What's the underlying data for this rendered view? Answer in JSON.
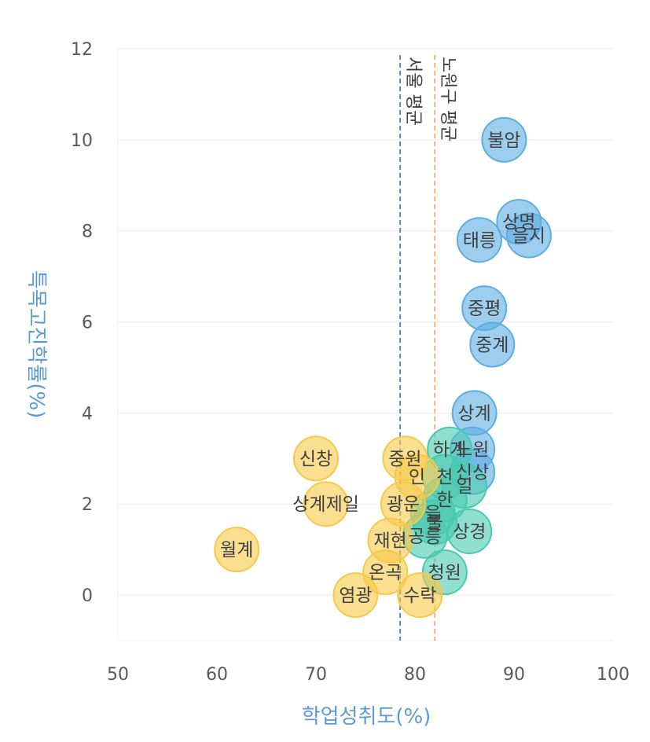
{
  "chart_data": {
    "type": "scatter",
    "xlabel": "학업성취도(%)",
    "ylabel": "특목고진학률(%)",
    "xlim": [
      50,
      100
    ],
    "ylim": [
      -1,
      12
    ],
    "x_ticks": [
      "50",
      "60",
      "70",
      "80",
      "90",
      "100"
    ],
    "y_ticks": [
      "0",
      "2",
      "4",
      "6",
      "8",
      "10",
      "12"
    ],
    "grid": "horizontal",
    "reference_lines": [
      {
        "label": "서울 평균",
        "x": 78.5,
        "color": "#5A8CA8"
      },
      {
        "label": "노원구 평균",
        "x": 82.0,
        "color": "#F4B183"
      }
    ],
    "groups": [
      {
        "color": "#5DADE2",
        "points": [
          {
            "label": "불암",
            "x": 89.0,
            "y": 10.0
          },
          {
            "label": "상명",
            "x": 90.5,
            "y": 8.2
          },
          {
            "label": "을지",
            "x": 91.5,
            "y": 7.9
          },
          {
            "label": "태릉",
            "x": 86.5,
            "y": 7.8
          },
          {
            "label": "중평",
            "x": 87.0,
            "y": 6.3
          },
          {
            "label": "중계",
            "x": 87.8,
            "y": 5.5
          },
          {
            "label": "상계",
            "x": 86.0,
            "y": 4.0
          },
          {
            "label": "노원",
            "x": 85.8,
            "y": 3.2
          },
          {
            "label": "신상",
            "x": 85.8,
            "y": 2.7
          }
        ]
      },
      {
        "color": "#48C9B0",
        "points": [
          {
            "label": "하계",
            "x": 83.5,
            "y": 3.2
          },
          {
            "label": "천",
            "x": 83.0,
            "y": 2.6
          },
          {
            "label": "일",
            "x": 85.0,
            "y": 2.4
          },
          {
            "label": "한",
            "x": 83.0,
            "y": 2.1
          },
          {
            "label": "을",
            "x": 81.8,
            "y": 1.8
          },
          {
            "label": "불",
            "x": 82.0,
            "y": 1.6
          },
          {
            "label": "상경",
            "x": 85.5,
            "y": 1.4
          },
          {
            "label": "공릉",
            "x": 81.0,
            "y": 1.3
          },
          {
            "label": "청원",
            "x": 83.0,
            "y": 0.5
          }
        ]
      },
      {
        "color": "#F7C948",
        "points": [
          {
            "label": "신창",
            "x": 70.0,
            "y": 3.0
          },
          {
            "label": "중원",
            "x": 79.0,
            "y": 3.0
          },
          {
            "label": "인",
            "x": 80.2,
            "y": 2.6
          },
          {
            "label": "상계제일",
            "x": 71.0,
            "y": 2.0
          },
          {
            "label": "광운",
            "x": 78.8,
            "y": 2.0
          },
          {
            "label": "재현",
            "x": 77.5,
            "y": 1.2
          },
          {
            "label": "월계",
            "x": 62.0,
            "y": 1.0
          },
          {
            "label": "온곡",
            "x": 77.0,
            "y": 0.5
          },
          {
            "label": "염광",
            "x": 74.0,
            "y": 0.0
          },
          {
            "label": "수락",
            "x": 80.5,
            "y": 0.0
          }
        ]
      }
    ]
  }
}
